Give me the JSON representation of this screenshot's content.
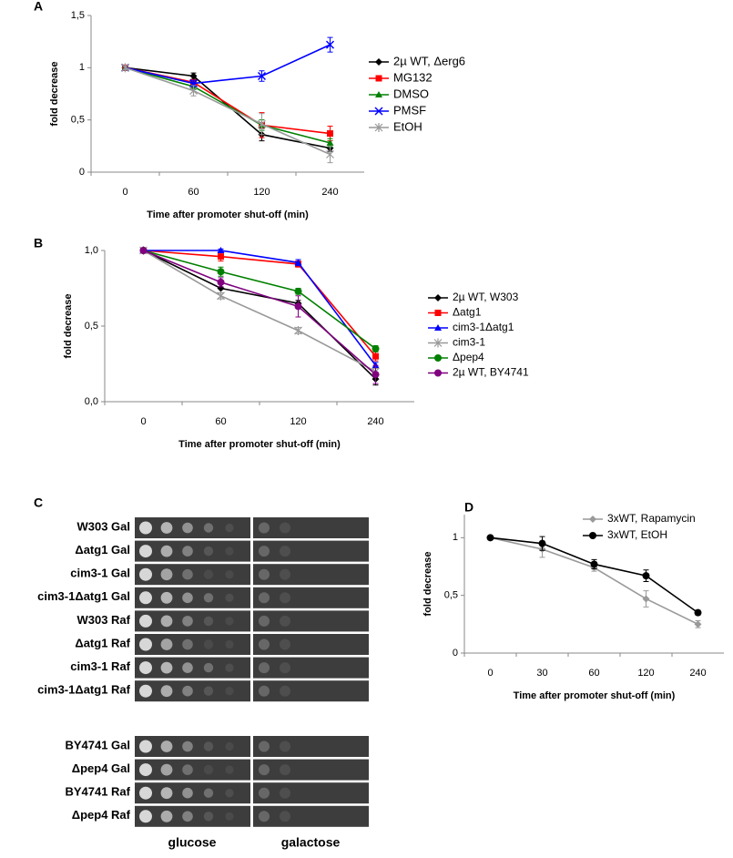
{
  "chart_data": [
    {
      "type": "line",
      "panel_label": "A",
      "x_label": "Time after promoter shut-off (min)",
      "y_label": "fold decrease",
      "categories": [
        "0",
        "60",
        "120",
        "240"
      ],
      "ylim": [
        0,
        1.5
      ],
      "yticks": [
        0,
        {
          "value": 0.5,
          "label": "0,5"
        },
        1,
        {
          "value": 1.5,
          "label": "1,5"
        }
      ],
      "legend": "right",
      "series": [
        {
          "name": "2µ WT, Δerg6",
          "color": "#000000",
          "marker": "diamond",
          "values": [
            1,
            0.92,
            0.36,
            0.23
          ],
          "errors": [
            0.02,
            0.03,
            0.06,
            0.03
          ]
        },
        {
          "name": "MG132",
          "color": "#ff0000",
          "marker": "square",
          "values": [
            1,
            0.86,
            0.45,
            0.37
          ],
          "errors": [
            0.01,
            0.02,
            0.12,
            0.07
          ]
        },
        {
          "name": "DMSO",
          "color": "#008000",
          "marker": "triangle",
          "values": [
            1,
            0.82,
            0.45,
            0.28
          ],
          "errors": [
            0.01,
            0.03,
            0.05,
            0.04
          ]
        },
        {
          "name": "PMSF",
          "color": "#0000ff",
          "marker": "x",
          "values": [
            1,
            0.85,
            0.92,
            1.22
          ],
          "errors": [
            0.02,
            0.03,
            0.05,
            0.07
          ]
        },
        {
          "name": "EtOH",
          "color": "#999999",
          "marker": "star",
          "values": [
            1,
            0.78,
            0.46,
            0.17
          ],
          "errors": [
            0.02,
            0.05,
            0.1,
            0.08
          ]
        }
      ]
    },
    {
      "type": "line",
      "panel_label": "B",
      "x_label": "Time after promoter shut-off (min)",
      "y_label": "fold decrease",
      "categories": [
        "0",
        "60",
        "120",
        "240"
      ],
      "ylim": [
        0,
        1
      ],
      "yticks": [
        {
          "value": 0,
          "label": "0,0"
        },
        {
          "value": 0.5,
          "label": "0,5"
        },
        {
          "value": 1,
          "label": "1,0"
        }
      ],
      "legend": "right",
      "series": [
        {
          "name": "2µ WT, W303",
          "color": "#000000",
          "marker": "diamond",
          "values": [
            1,
            0.75,
            0.65,
            0.15
          ],
          "errors": [
            0.01,
            0.03,
            0.02,
            0.04
          ]
        },
        {
          "name": "Δatg1",
          "color": "#ff0000",
          "marker": "square",
          "values": [
            1,
            0.96,
            0.91,
            0.3
          ],
          "errors": [
            0.01,
            0.03,
            0.02,
            0.03
          ]
        },
        {
          "name": "cim3-1Δatg1",
          "color": "#0000ff",
          "marker": "triangle",
          "values": [
            1,
            1,
            0.92,
            0.24
          ],
          "errors": [
            0.01,
            0.01,
            0.02,
            0.02
          ]
        },
        {
          "name": "cim3-1",
          "color": "#999999",
          "marker": "star",
          "values": [
            1,
            0.7,
            0.47,
            0.2
          ],
          "errors": [
            0.01,
            0.02,
            0.02,
            0.02
          ]
        },
        {
          "name": "Δpep4",
          "color": "#008000",
          "marker": "circle",
          "values": [
            1,
            0.86,
            0.73,
            0.35
          ],
          "errors": [
            0.01,
            0.03,
            0.02,
            0.02
          ]
        },
        {
          "name": "2µ WT, BY4741",
          "color": "#800080",
          "marker": "circle",
          "values": [
            1,
            0.79,
            0.63,
            0.18
          ],
          "errors": [
            0.01,
            0.03,
            0.07,
            0.06
          ]
        }
      ]
    },
    {
      "type": "line",
      "panel_label": "D",
      "x_label": "Time after promoter shut-off (min)",
      "y_label": "fold decrease",
      "categories": [
        "0",
        "30",
        "60",
        "120",
        "240"
      ],
      "ylim": [
        0,
        1.2
      ],
      "yticks": [
        0,
        {
          "value": 0.5,
          "label": "0,5"
        },
        1
      ],
      "legend": "top-right",
      "series": [
        {
          "name": "3xWT, Rapamycin",
          "color": "#999999",
          "marker": "diamond",
          "values": [
            1,
            0.9,
            0.74,
            0.47,
            0.25
          ],
          "errors": [
            0.01,
            0.07,
            0.03,
            0.07,
            0.03
          ]
        },
        {
          "name": "3xWT, EtOH",
          "color": "#000000",
          "marker": "circle",
          "values": [
            1,
            0.95,
            0.77,
            0.67,
            0.35
          ],
          "errors": [
            0.01,
            0.06,
            0.04,
            0.05,
            0.02
          ]
        }
      ]
    }
  ],
  "spot_assay": {
    "panel_label": "C",
    "columns": [
      "glucose",
      "galactose"
    ],
    "groups": [
      [
        "W303 Gal",
        "Δatg1 Gal",
        "cim3-1 Gal",
        "cim3-1Δatg1 Gal",
        "W303 Raf",
        "Δatg1 Raf",
        "cim3-1 Raf",
        "cim3-1Δatg1 Raf"
      ],
      [
        "BY4741 Gal",
        "Δpep4 Gal",
        "BY4741 Raf",
        "Δpep4 Raf"
      ]
    ]
  }
}
